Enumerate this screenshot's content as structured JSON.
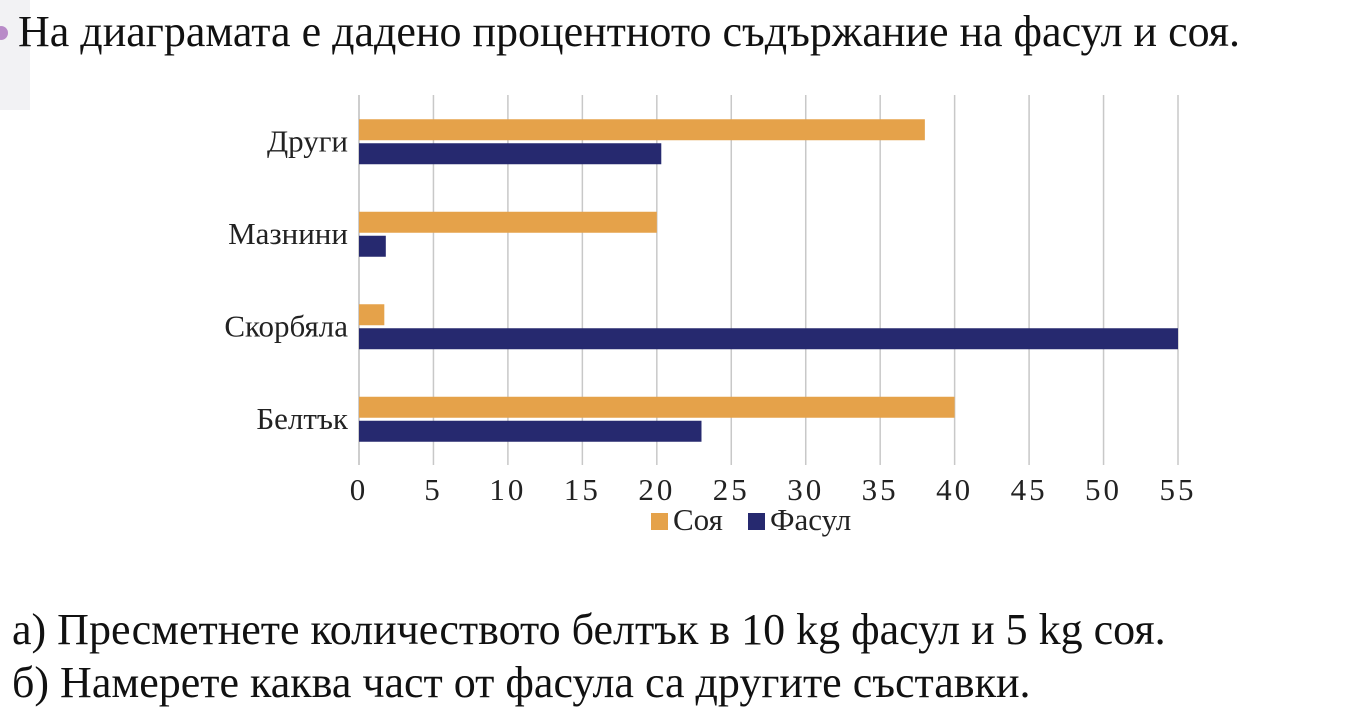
{
  "intro_text": "На диаграмата е дадено процентното съдържание на фасул и соя.",
  "chart_data": {
    "type": "bar",
    "orientation": "horizontal",
    "categories": [
      "Белтък",
      "Скорбяла",
      "Мазнини",
      "Други"
    ],
    "series": [
      {
        "name": "Соя",
        "values": [
          40,
          1.7,
          20,
          38
        ],
        "color": "#e5a24a"
      },
      {
        "name": "Фасул",
        "values": [
          23,
          55,
          1.8,
          20.3
        ],
        "color": "#26296f"
      }
    ],
    "xlim": [
      0,
      55
    ],
    "x_ticks": [
      0,
      5,
      10,
      15,
      20,
      25,
      30,
      35,
      40,
      45,
      50,
      55
    ],
    "grid": "vertical",
    "legend_position": "bottom",
    "title": "",
    "xlabel": "",
    "ylabel": ""
  },
  "questions": {
    "a": "а) Пресметнете количеството белтък в 10 kg фасул и 5 kg соя.",
    "b": "б) Намерете каква част от фасула са другите съставки."
  }
}
